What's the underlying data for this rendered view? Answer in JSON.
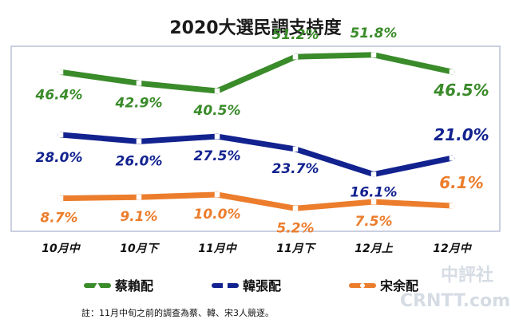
{
  "chart_data": {
    "type": "line",
    "title": "2020大選民調支持度",
    "categories": [
      "10月中",
      "10月下",
      "11月中",
      "11月下",
      "12月上",
      "12月中"
    ],
    "ylim": [
      0,
      60
    ],
    "grid": false,
    "legend_position": "bottom",
    "series": [
      {
        "name": "蔡賴配",
        "color": "#3a8b2a",
        "values": [
          46.4,
          42.9,
          40.5,
          51.2,
          51.8,
          46.5
        ],
        "labels": [
          "46.4%",
          "42.9%",
          "40.5%",
          "51.2%",
          "51.8%",
          "46.5%"
        ]
      },
      {
        "name": "韓張配",
        "color": "#12228f",
        "values": [
          28.0,
          26.0,
          27.5,
          23.7,
          16.1,
          21.0
        ],
        "labels": [
          "28.0%",
          "26.0%",
          "27.5%",
          "23.7%",
          "16.1%",
          "21.0%"
        ]
      },
      {
        "name": "宋余配",
        "color": "#ec7d2c",
        "values": [
          8.7,
          9.1,
          10.0,
          5.2,
          7.5,
          6.1
        ],
        "labels": [
          "8.7%",
          "9.1%",
          "10.0%",
          "5.2%",
          "7.5%",
          "6.1%"
        ]
      }
    ],
    "note": "註：11月中旬之前的調查為蔡、韓、宋3人競逐。"
  },
  "watermark": {
    "top": "中評社",
    "bottom": "CRNTT.com"
  }
}
